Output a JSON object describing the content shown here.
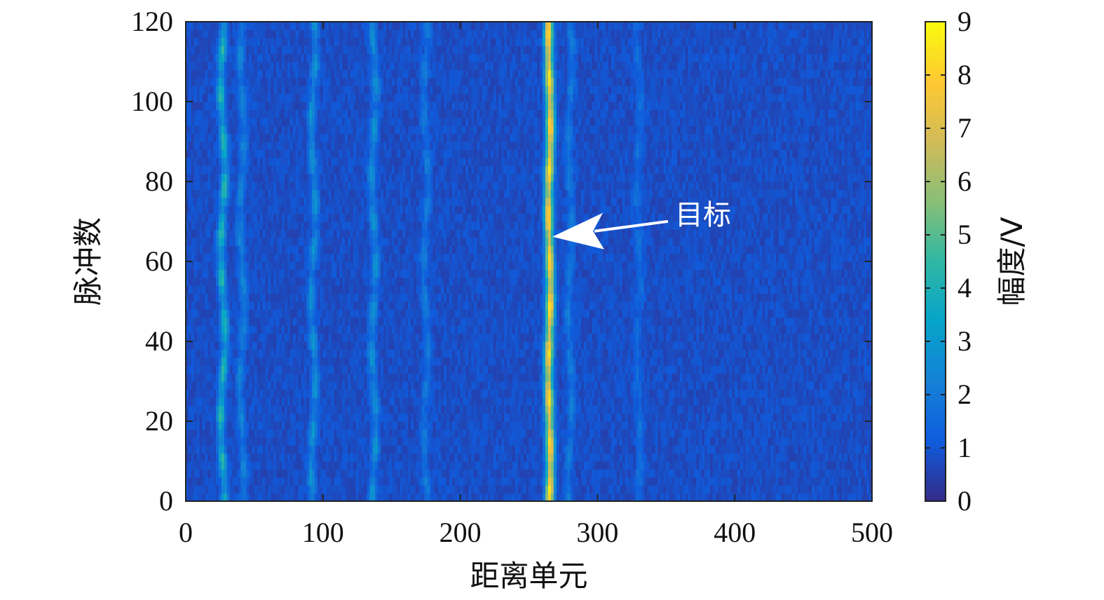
{
  "chart_data": {
    "type": "heatmap",
    "title": "",
    "xlabel": "距离单元",
    "ylabel": "脉冲数",
    "xlim": [
      0,
      500
    ],
    "ylim": [
      0,
      120
    ],
    "xticks": [
      "0",
      "100",
      "200",
      "300",
      "400",
      "500"
    ],
    "yticks": [
      "0",
      "20",
      "40",
      "60",
      "80",
      "100",
      "120"
    ],
    "colorbar": {
      "label": "幅度/V",
      "range": [
        0,
        9
      ],
      "ticks": [
        "0",
        "1",
        "2",
        "3",
        "4",
        "5",
        "6",
        "7",
        "8",
        "9"
      ],
      "colormap": "parula",
      "colors": [
        "#352a87",
        "#0f5cdd",
        "#1481d6",
        "#06a4ca",
        "#2eb7a4",
        "#87bf77",
        "#d1bb59",
        "#fec832",
        "#f9fb0e"
      ]
    },
    "background_level": 0.8,
    "features": [
      {
        "x": 265,
        "peak": 8.5,
        "base": 6.5,
        "description": "target"
      },
      {
        "x": 27,
        "peak": 4.5,
        "base": 2.5
      },
      {
        "x": 93,
        "peak": 3.0,
        "base": 1.8
      },
      {
        "x": 137,
        "peak": 3.0,
        "base": 1.8
      },
      {
        "x": 41,
        "peak": 2.5,
        "base": 1.6
      },
      {
        "x": 175,
        "peak": 2.2,
        "base": 1.4
      },
      {
        "x": 280,
        "peak": 2.2,
        "base": 1.5
      },
      {
        "x": 330,
        "peak": 1.8,
        "base": 1.3
      }
    ],
    "annotations": [
      {
        "text": "目标",
        "x": 262,
        "y": 66
      }
    ]
  }
}
